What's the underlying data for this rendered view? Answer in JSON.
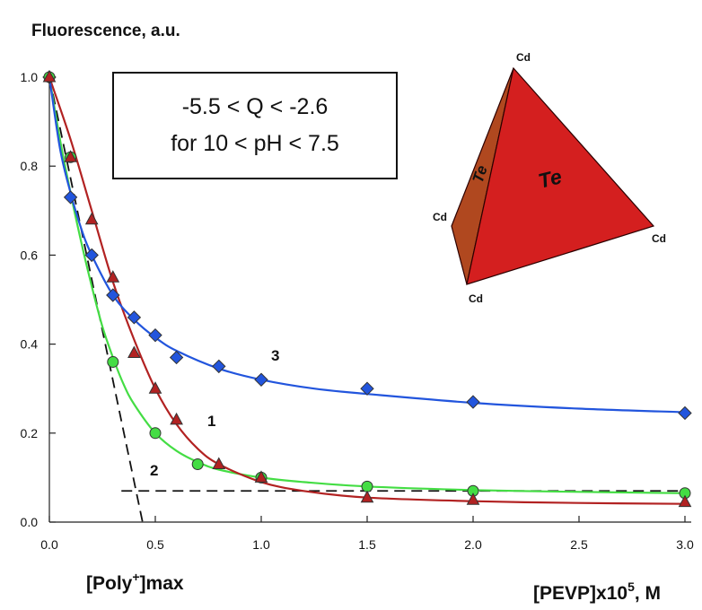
{
  "chart_data": {
    "type": "line",
    "ylabel": "Fluorescence, a.u.",
    "xlabel": "[PEVP]x10",
    "xlabel_superscript": "5",
    "xlabel_unit": ", M",
    "xlim": [
      0.0,
      3.0
    ],
    "ylim": [
      0.0,
      1.0
    ],
    "x_ticks": [
      "0.0",
      "0.5",
      "1.0",
      "1.5",
      "2.0",
      "2.5",
      "3.0"
    ],
    "y_ticks": [
      "0.0",
      "0.2",
      "0.4",
      "0.6",
      "0.8",
      "1.0"
    ],
    "grid": false,
    "annotation_box": {
      "line1": "-5.5 < Q < -2.6",
      "line2": "for 10 < pH < 7.5"
    },
    "poly_label": {
      "prefix": "[Poly",
      "superscript": "+",
      "suffix": "]max"
    },
    "series": [
      {
        "label": "1",
        "color": "#b22222",
        "marker": "triangle",
        "points": [
          {
            "x": 0.0,
            "y": 1.0
          },
          {
            "x": 0.1,
            "y": 0.82
          },
          {
            "x": 0.2,
            "y": 0.68
          },
          {
            "x": 0.3,
            "y": 0.55
          },
          {
            "x": 0.4,
            "y": 0.38
          },
          {
            "x": 0.5,
            "y": 0.3
          },
          {
            "x": 0.6,
            "y": 0.23
          },
          {
            "x": 0.8,
            "y": 0.13
          },
          {
            "x": 1.0,
            "y": 0.1
          },
          {
            "x": 1.5,
            "y": 0.055
          },
          {
            "x": 2.0,
            "y": 0.05
          },
          {
            "x": 3.0,
            "y": 0.045
          }
        ],
        "curve": [
          {
            "x": 0.0,
            "y": 1.0
          },
          {
            "x": 0.1,
            "y": 0.86
          },
          {
            "x": 0.2,
            "y": 0.7
          },
          {
            "x": 0.3,
            "y": 0.54
          },
          {
            "x": 0.4,
            "y": 0.41
          },
          {
            "x": 0.5,
            "y": 0.3
          },
          {
            "x": 0.6,
            "y": 0.22
          },
          {
            "x": 0.7,
            "y": 0.165
          },
          {
            "x": 0.8,
            "y": 0.13
          },
          {
            "x": 1.0,
            "y": 0.09
          },
          {
            "x": 1.2,
            "y": 0.07
          },
          {
            "x": 1.5,
            "y": 0.055
          },
          {
            "x": 2.0,
            "y": 0.047
          },
          {
            "x": 2.5,
            "y": 0.043
          },
          {
            "x": 3.0,
            "y": 0.041
          }
        ]
      },
      {
        "label": "2",
        "color": "#44dd44",
        "marker": "circle",
        "points": [
          {
            "x": 0.0,
            "y": 1.0
          },
          {
            "x": 0.1,
            "y": 0.82
          },
          {
            "x": 0.3,
            "y": 0.36
          },
          {
            "x": 0.5,
            "y": 0.2
          },
          {
            "x": 0.7,
            "y": 0.13
          },
          {
            "x": 1.0,
            "y": 0.1
          },
          {
            "x": 1.5,
            "y": 0.08
          },
          {
            "x": 2.0,
            "y": 0.07
          },
          {
            "x": 3.0,
            "y": 0.065
          }
        ],
        "curve": [
          {
            "x": 0.0,
            "y": 1.0
          },
          {
            "x": 0.05,
            "y": 0.86
          },
          {
            "x": 0.1,
            "y": 0.74
          },
          {
            "x": 0.15,
            "y": 0.63
          },
          {
            "x": 0.2,
            "y": 0.53
          },
          {
            "x": 0.25,
            "y": 0.44
          },
          {
            "x": 0.3,
            "y": 0.37
          },
          {
            "x": 0.35,
            "y": 0.31
          },
          {
            "x": 0.4,
            "y": 0.265
          },
          {
            "x": 0.5,
            "y": 0.2
          },
          {
            "x": 0.6,
            "y": 0.16
          },
          {
            "x": 0.7,
            "y": 0.135
          },
          {
            "x": 0.8,
            "y": 0.118
          },
          {
            "x": 1.0,
            "y": 0.1
          },
          {
            "x": 1.2,
            "y": 0.09
          },
          {
            "x": 1.5,
            "y": 0.08
          },
          {
            "x": 2.0,
            "y": 0.072
          },
          {
            "x": 2.5,
            "y": 0.068
          },
          {
            "x": 3.0,
            "y": 0.065
          }
        ]
      },
      {
        "label": "3",
        "color": "#2255dd",
        "marker": "diamond",
        "points": [
          {
            "x": 0.0,
            "y": 1.0
          },
          {
            "x": 0.1,
            "y": 0.73
          },
          {
            "x": 0.2,
            "y": 0.6
          },
          {
            "x": 0.3,
            "y": 0.51
          },
          {
            "x": 0.4,
            "y": 0.46
          },
          {
            "x": 0.5,
            "y": 0.42
          },
          {
            "x": 0.6,
            "y": 0.37
          },
          {
            "x": 0.8,
            "y": 0.35
          },
          {
            "x": 1.0,
            "y": 0.32
          },
          {
            "x": 1.5,
            "y": 0.3
          },
          {
            "x": 2.0,
            "y": 0.27
          },
          {
            "x": 3.0,
            "y": 0.245
          }
        ],
        "curve": [
          {
            "x": 0.0,
            "y": 1.0
          },
          {
            "x": 0.05,
            "y": 0.84
          },
          {
            "x": 0.1,
            "y": 0.74
          },
          {
            "x": 0.15,
            "y": 0.66
          },
          {
            "x": 0.2,
            "y": 0.6
          },
          {
            "x": 0.3,
            "y": 0.51
          },
          {
            "x": 0.4,
            "y": 0.455
          },
          {
            "x": 0.5,
            "y": 0.415
          },
          {
            "x": 0.6,
            "y": 0.385
          },
          {
            "x": 0.8,
            "y": 0.345
          },
          {
            "x": 1.0,
            "y": 0.32
          },
          {
            "x": 1.25,
            "y": 0.3
          },
          {
            "x": 1.5,
            "y": 0.288
          },
          {
            "x": 2.0,
            "y": 0.268
          },
          {
            "x": 2.5,
            "y": 0.255
          },
          {
            "x": 3.0,
            "y": 0.247
          }
        ]
      }
    ],
    "dashed_lines": [
      {
        "from": {
          "x": 0.0,
          "y": 1.0
        },
        "to": {
          "x": 0.44,
          "y": 0.0
        }
      },
      {
        "from": {
          "x": 0.34,
          "y": 0.07
        },
        "to": {
          "x": 3.0,
          "y": 0.07
        }
      }
    ],
    "tetrahedron": {
      "vertex_labels": [
        "Cd",
        "Cd",
        "Cd",
        "Cd"
      ],
      "face_labels": [
        "Te",
        "Te"
      ],
      "front_face_color": "#d41f1f",
      "side_face_color": "#b0481f"
    }
  }
}
